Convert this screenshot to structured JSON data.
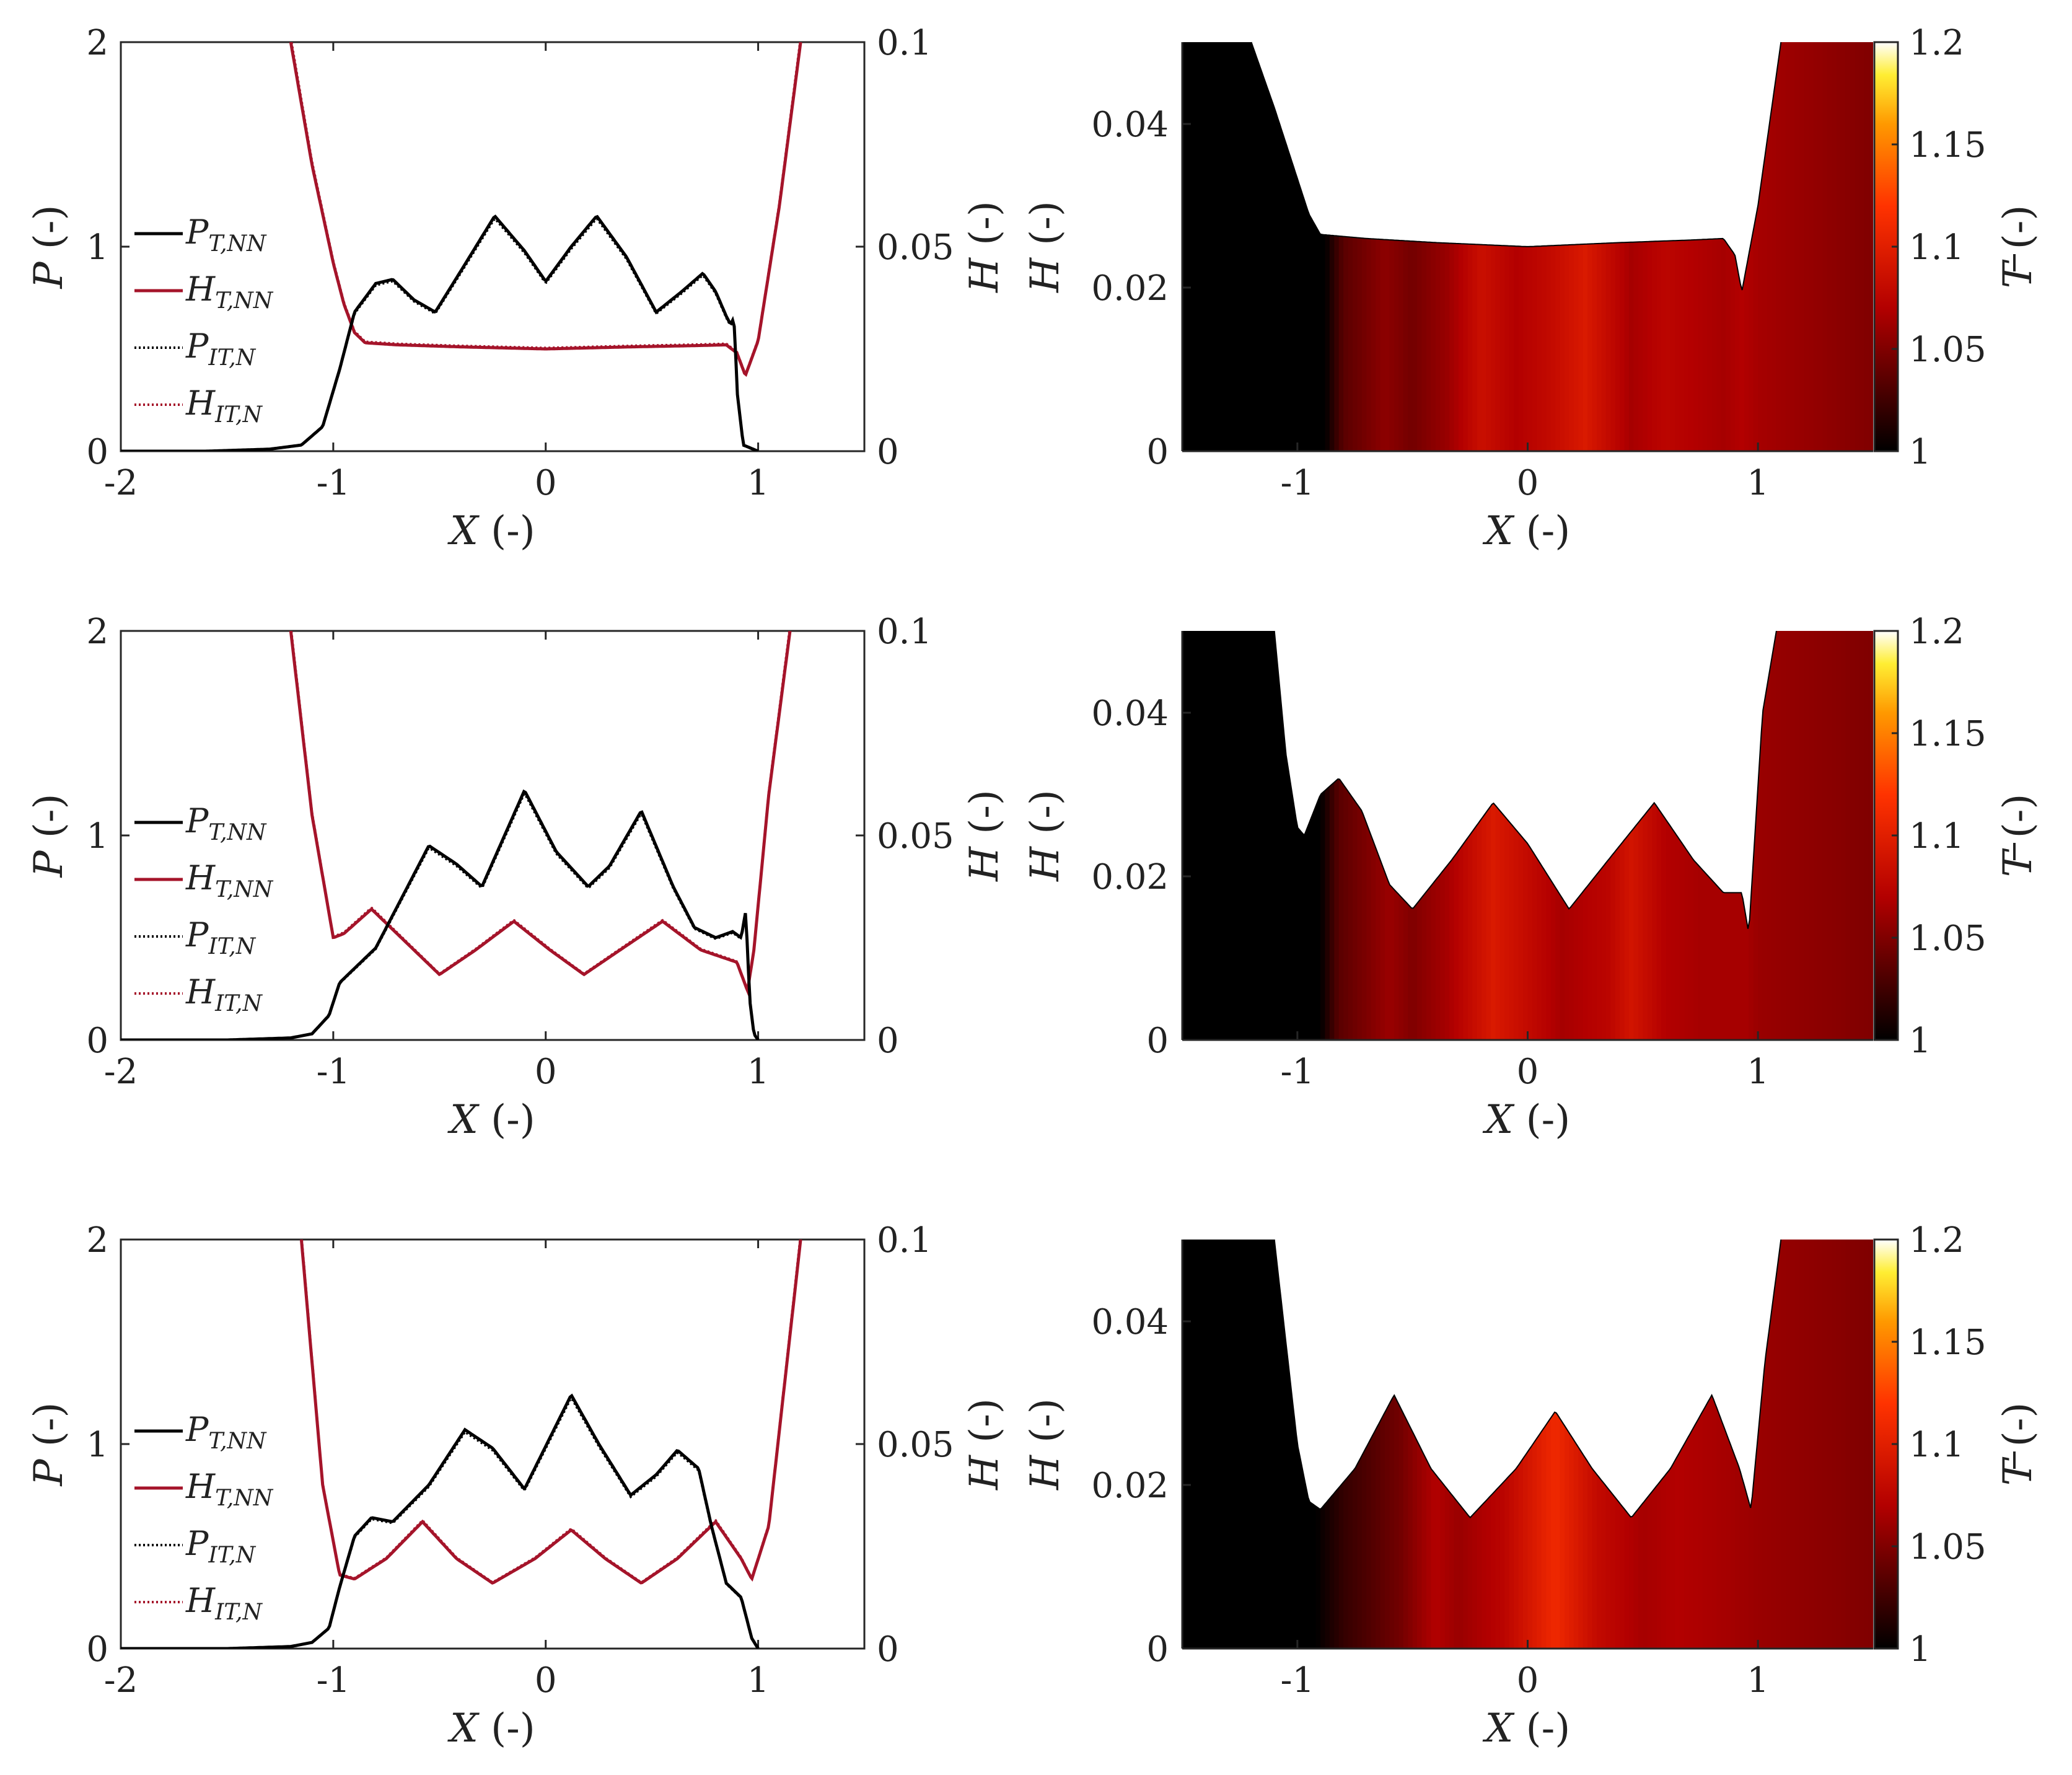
{
  "figure": {
    "description_free": true
  },
  "chart_data": [
    {
      "type": "line",
      "panel": "left-1",
      "xlabel_var": "X",
      "xlabel_unit": "(-)",
      "ylabel_var": "P",
      "ylabel_unit": "(-)",
      "y2label_var": "H",
      "y2label_unit": "(-)",
      "xlim": [
        -2,
        1.5
      ],
      "ylim": [
        0,
        2
      ],
      "y2lim": [
        0,
        0.1
      ],
      "xticks": [
        "-2",
        "-1",
        "0",
        "1"
      ],
      "yticks": [
        "0",
        "1",
        "2"
      ],
      "y2ticks": [
        "0",
        "0.05",
        "0.1"
      ],
      "legend": [
        {
          "main": "P",
          "sub": "T,NN",
          "color": "#000000",
          "style": "solid"
        },
        {
          "main": "H",
          "sub": "T,NN",
          "color": "#a5142a",
          "style": "solid"
        },
        {
          "main": "P",
          "sub": "IT,N",
          "color": "#000000",
          "style": "dotted"
        },
        {
          "main": "H",
          "sub": "IT,N",
          "color": "#a5142a",
          "style": "dotted"
        }
      ],
      "series": [
        {
          "name": "P_T,NN",
          "axis": "left",
          "x": [
            -2.0,
            -1.6,
            -1.3,
            -1.15,
            -1.05,
            -0.97,
            -0.9,
            -0.8,
            -0.72,
            -0.62,
            -0.52,
            -0.4,
            -0.24,
            -0.1,
            0.0,
            0.12,
            0.24,
            0.38,
            0.52,
            0.64,
            0.74,
            0.8,
            0.85,
            0.87,
            0.88,
            0.89,
            0.9,
            0.93,
            1.0
          ],
          "values": [
            0,
            0,
            0.01,
            0.03,
            0.12,
            0.4,
            0.68,
            0.82,
            0.84,
            0.74,
            0.68,
            0.88,
            1.15,
            0.98,
            0.83,
            1.0,
            1.15,
            0.95,
            0.68,
            0.78,
            0.87,
            0.78,
            0.66,
            0.62,
            0.64,
            0.6,
            0.3,
            0.03,
            0
          ]
        },
        {
          "name": "H_T,NN",
          "axis": "right",
          "x": [
            -1.2,
            -1.1,
            -1.0,
            -0.95,
            -0.9,
            -0.85,
            -0.7,
            -0.4,
            0.0,
            0.4,
            0.7,
            0.85,
            0.9,
            0.94,
            1.0,
            1.1,
            1.2
          ],
          "values": [
            0.1,
            0.07,
            0.046,
            0.036,
            0.029,
            0.0265,
            0.026,
            0.0255,
            0.025,
            0.0255,
            0.0258,
            0.026,
            0.024,
            0.0185,
            0.027,
            0.06,
            0.1
          ]
        }
      ]
    },
    {
      "type": "heatmap",
      "panel": "right-1",
      "xlabel_var": "X",
      "xlabel_unit": "(-)",
      "ylabel_var": "H",
      "ylabel_unit": "(-)",
      "colorbar_var": "T",
      "colorbar_unit": "(-)",
      "xlim": [
        -1.5,
        1.5
      ],
      "ylim": [
        0,
        0.05
      ],
      "clim": [
        1,
        1.2
      ],
      "xticks": [
        "-1",
        "0",
        "1"
      ],
      "yticks": [
        "0",
        "0.02",
        "0.04"
      ],
      "cticks": [
        "1",
        "1.05",
        "1.1",
        "1.15",
        "1.2"
      ],
      "film_x": [
        -1.2,
        -1.1,
        -0.95,
        -0.9,
        -0.7,
        -0.4,
        0.0,
        0.4,
        0.7,
        0.85,
        0.9,
        0.93,
        1.0,
        1.1
      ],
      "film_h": [
        0.05,
        0.042,
        0.029,
        0.0265,
        0.026,
        0.0255,
        0.025,
        0.0255,
        0.0258,
        0.026,
        0.024,
        0.0195,
        0.03,
        0.05
      ],
      "temp_x": [
        -1.5,
        -0.88,
        -0.8,
        -0.62,
        -0.5,
        -0.35,
        -0.2,
        -0.05,
        0.1,
        0.25,
        0.45,
        0.6,
        0.72,
        0.85,
        0.93,
        1.0,
        1.5
      ],
      "temp_t": [
        1.0,
        1.0,
        1.035,
        1.055,
        1.045,
        1.06,
        1.085,
        1.07,
        1.08,
        1.095,
        1.065,
        1.075,
        1.07,
        1.065,
        1.07,
        1.065,
        1.05
      ]
    },
    {
      "type": "line",
      "panel": "left-2",
      "xlabel_var": "X",
      "xlabel_unit": "(-)",
      "ylabel_var": "P",
      "ylabel_unit": "(-)",
      "y2label_var": "H",
      "y2label_unit": "(-)",
      "xlim": [
        -2,
        1.5
      ],
      "ylim": [
        0,
        2
      ],
      "y2lim": [
        0,
        0.1
      ],
      "xticks": [
        "-2",
        "-1",
        "0",
        "1"
      ],
      "yticks": [
        "0",
        "1",
        "2"
      ],
      "y2ticks": [
        "0",
        "0.05",
        "0.1"
      ],
      "legend": [
        {
          "main": "P",
          "sub": "T,NN",
          "color": "#000000",
          "style": "solid"
        },
        {
          "main": "H",
          "sub": "T,NN",
          "color": "#a5142a",
          "style": "solid"
        },
        {
          "main": "P",
          "sub": "IT,N",
          "color": "#000000",
          "style": "dotted"
        },
        {
          "main": "H",
          "sub": "IT,N",
          "color": "#a5142a",
          "style": "dotted"
        }
      ],
      "series": [
        {
          "name": "P_T,NN",
          "axis": "left",
          "x": [
            -2.0,
            -1.5,
            -1.2,
            -1.1,
            -1.02,
            -0.97,
            -0.9,
            -0.8,
            -0.7,
            -0.55,
            -0.42,
            -0.3,
            -0.1,
            0.05,
            0.2,
            0.3,
            0.45,
            0.6,
            0.7,
            0.8,
            0.88,
            0.92,
            0.94,
            0.95,
            0.96,
            0.98,
            1.0
          ],
          "values": [
            0,
            0,
            0.01,
            0.03,
            0.12,
            0.28,
            0.35,
            0.45,
            0.65,
            0.95,
            0.86,
            0.75,
            1.22,
            0.92,
            0.75,
            0.85,
            1.12,
            0.75,
            0.55,
            0.5,
            0.53,
            0.5,
            0.62,
            0.45,
            0.2,
            0.03,
            0
          ]
        },
        {
          "name": "H_T,NN",
          "axis": "right",
          "x": [
            -1.2,
            -1.1,
            -1.0,
            -0.95,
            -0.82,
            -0.7,
            -0.5,
            -0.33,
            -0.15,
            0.02,
            0.18,
            0.35,
            0.55,
            0.73,
            0.9,
            0.95,
            0.98,
            1.05,
            1.15
          ],
          "values": [
            0.1,
            0.055,
            0.025,
            0.026,
            0.032,
            0.026,
            0.016,
            0.022,
            0.029,
            0.022,
            0.016,
            0.022,
            0.029,
            0.022,
            0.019,
            0.012,
            0.022,
            0.06,
            0.1
          ]
        }
      ]
    },
    {
      "type": "heatmap",
      "panel": "right-2",
      "xlabel_var": "X",
      "xlabel_unit": "(-)",
      "ylabel_var": "H",
      "ylabel_unit": "(-)",
      "colorbar_var": "T",
      "colorbar_unit": "(-)",
      "xlim": [
        -1.5,
        1.5
      ],
      "ylim": [
        0,
        0.05
      ],
      "clim": [
        1,
        1.2
      ],
      "xticks": [
        "-1",
        "0",
        "1"
      ],
      "yticks": [
        "0",
        "0.02",
        "0.04"
      ],
      "cticks": [
        "1",
        "1.05",
        "1.1",
        "1.15",
        "1.2"
      ],
      "film_x": [
        -1.1,
        -1.05,
        -1.0,
        -0.97,
        -0.9,
        -0.82,
        -0.72,
        -0.6,
        -0.5,
        -0.33,
        -0.15,
        0.0,
        0.18,
        0.35,
        0.55,
        0.72,
        0.85,
        0.93,
        0.96,
        1.02,
        1.08
      ],
      "film_h": [
        0.05,
        0.035,
        0.026,
        0.025,
        0.03,
        0.032,
        0.028,
        0.019,
        0.016,
        0.022,
        0.029,
        0.024,
        0.016,
        0.022,
        0.029,
        0.022,
        0.018,
        0.018,
        0.013,
        0.04,
        0.05
      ],
      "temp_x": [
        -1.5,
        -0.9,
        -0.82,
        -0.6,
        -0.5,
        -0.35,
        -0.15,
        0.0,
        0.15,
        0.35,
        0.45,
        0.6,
        0.75,
        0.95,
        1.0,
        1.5
      ],
      "temp_t": [
        1.0,
        1.0,
        1.035,
        1.06,
        1.05,
        1.065,
        1.095,
        1.08,
        1.065,
        1.075,
        1.09,
        1.07,
        1.065,
        1.065,
        1.06,
        1.05
      ]
    },
    {
      "type": "line",
      "panel": "left-3",
      "xlabel_var": "X",
      "xlabel_unit": "(-)",
      "ylabel_var": "P",
      "ylabel_unit": "(-)",
      "y2label_var": "H",
      "y2label_unit": "(-)",
      "xlim": [
        -2,
        1.5
      ],
      "ylim": [
        0,
        2
      ],
      "y2lim": [
        0,
        0.1
      ],
      "xticks": [
        "-2",
        "-1",
        "0",
        "1"
      ],
      "yticks": [
        "0",
        "1",
        "2"
      ],
      "y2ticks": [
        "0",
        "0.05",
        "0.1"
      ],
      "legend": [
        {
          "main": "P",
          "sub": "T,NN",
          "color": "#000000",
          "style": "solid"
        },
        {
          "main": "H",
          "sub": "T,NN",
          "color": "#a5142a",
          "style": "solid"
        },
        {
          "main": "P",
          "sub": "IT,N",
          "color": "#000000",
          "style": "dotted"
        },
        {
          "main": "H",
          "sub": "IT,N",
          "color": "#a5142a",
          "style": "dotted"
        }
      ],
      "series": [
        {
          "name": "P_T,NN",
          "axis": "left",
          "x": [
            -2.0,
            -1.5,
            -1.2,
            -1.1,
            -1.02,
            -0.97,
            -0.9,
            -0.82,
            -0.72,
            -0.55,
            -0.38,
            -0.25,
            -0.1,
            0.12,
            0.25,
            0.4,
            0.52,
            0.62,
            0.72,
            0.78,
            0.85,
            0.92,
            0.97,
            1.0
          ],
          "values": [
            0,
            0,
            0.01,
            0.03,
            0.1,
            0.3,
            0.55,
            0.64,
            0.62,
            0.8,
            1.07,
            0.98,
            0.78,
            1.24,
            1.0,
            0.75,
            0.85,
            0.97,
            0.88,
            0.6,
            0.32,
            0.25,
            0.05,
            0
          ]
        },
        {
          "name": "H_T,NN",
          "axis": "right",
          "x": [
            -1.15,
            -1.05,
            -0.97,
            -0.9,
            -0.75,
            -0.58,
            -0.42,
            -0.25,
            -0.05,
            0.12,
            0.28,
            0.45,
            0.62,
            0.8,
            0.92,
            0.97,
            1.05,
            1.2
          ],
          "values": [
            0.1,
            0.04,
            0.018,
            0.017,
            0.022,
            0.031,
            0.022,
            0.016,
            0.022,
            0.029,
            0.022,
            0.016,
            0.022,
            0.031,
            0.022,
            0.017,
            0.03,
            0.1
          ]
        }
      ]
    },
    {
      "type": "heatmap",
      "panel": "right-3",
      "xlabel_var": "X",
      "xlabel_unit": "(-)",
      "ylabel_var": "H",
      "ylabel_unit": "(-)",
      "colorbar_var": "T",
      "colorbar_unit": "(-)",
      "xlim": [
        -1.5,
        1.5
      ],
      "ylim": [
        0,
        0.05
      ],
      "clim": [
        1,
        1.2
      ],
      "xticks": [
        "-1",
        "0",
        "1"
      ],
      "yticks": [
        "0",
        "0.02",
        "0.04"
      ],
      "cticks": [
        "1",
        "1.05",
        "1.1",
        "1.15",
        "1.2"
      ],
      "film_x": [
        -1.1,
        -1.0,
        -0.95,
        -0.9,
        -0.75,
        -0.58,
        -0.42,
        -0.25,
        -0.05,
        0.12,
        0.28,
        0.45,
        0.62,
        0.8,
        0.92,
        0.97,
        1.03,
        1.1
      ],
      "film_h": [
        0.05,
        0.025,
        0.018,
        0.017,
        0.022,
        0.031,
        0.022,
        0.016,
        0.022,
        0.029,
        0.022,
        0.016,
        0.022,
        0.031,
        0.022,
        0.017,
        0.035,
        0.05
      ],
      "temp_x": [
        -1.5,
        -0.92,
        -0.8,
        -0.55,
        -0.4,
        -0.3,
        -0.1,
        0.12,
        0.3,
        0.5,
        0.65,
        0.85,
        1.0,
        1.5
      ],
      "temp_t": [
        1.0,
        1.0,
        1.02,
        1.045,
        1.07,
        1.06,
        1.075,
        1.11,
        1.08,
        1.065,
        1.07,
        1.065,
        1.06,
        1.05
      ]
    }
  ]
}
